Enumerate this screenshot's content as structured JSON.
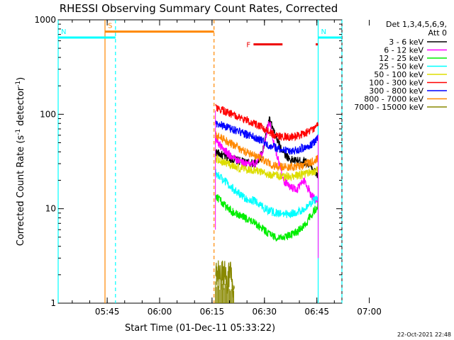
{
  "chart_data": {
    "type": "line",
    "title": "RHESSI Observing Summary Count Rates, Corrected",
    "xlabel": "Start Time (01-Dec-11 05:33:22)",
    "ylabel": "Corrected Count Rate (s",
    "ylabel_sup1": "-1",
    "ylabel_mid": " detector",
    "ylabel_sup2": "-1",
    "ylabel_end": ")",
    "x_start": "05:33:22",
    "x_range_min": [
      -2.4,
      78.8
    ],
    "x_ticks": [
      {
        "label": "05:45",
        "min": 11.63
      },
      {
        "label": "06:00",
        "min": 26.63
      },
      {
        "label": "06:15",
        "min": 41.63
      },
      {
        "label": "06:30",
        "min": 56.63
      },
      {
        "label": "06:45",
        "min": 71.63
      },
      {
        "label": "07:00",
        "min": 86.63
      }
    ],
    "y_scale": "log",
    "ylim": [
      1,
      1000
    ],
    "y_tick_labels": [
      {
        "label": "1",
        "value": 1
      },
      {
        "label": "10",
        "value": 10
      },
      {
        "label": "100",
        "value": 100
      },
      {
        "label": "1000",
        "value": 1000
      }
    ],
    "legend": {
      "placement": "right",
      "header1": "Det 1,3,4,5,6,9,",
      "header2": "Att 0"
    },
    "timestamp": "22-Oct-2021 22:48",
    "data_window_min": [
      42.6,
      72.0
    ],
    "series": [
      {
        "name": "3 - 6 keV",
        "color": "#000000",
        "x": [
          42.6,
          45,
          48,
          51,
          54,
          56,
          58,
          60,
          62,
          64,
          66,
          68,
          70,
          72
        ],
        "y": [
          40,
          36,
          33,
          31,
          30,
          38,
          90,
          55,
          40,
          33,
          32,
          32,
          28,
          22
        ]
      },
      {
        "name": "6 - 12 keV",
        "color": "#ff00ff",
        "x": [
          42.6,
          45,
          48,
          51,
          54,
          56,
          58,
          60,
          62,
          64,
          66,
          68,
          70,
          72
        ],
        "y": [
          55,
          42,
          34,
          30,
          30,
          40,
          85,
          40,
          20,
          17,
          16,
          20,
          14,
          12
        ]
      },
      {
        "name": "12 - 25 keV",
        "color": "#00ee00",
        "x": [
          42.6,
          45,
          48,
          51,
          54,
          56,
          58,
          60,
          62,
          64,
          66,
          68,
          70,
          72
        ],
        "y": [
          14,
          11,
          9,
          8,
          7,
          6.2,
          5.4,
          5,
          5,
          5.2,
          5.8,
          6.5,
          8.5,
          11
        ]
      },
      {
        "name": "25 - 50 keV",
        "color": "#00ffff",
        "x": [
          42.6,
          45,
          48,
          51,
          54,
          56,
          58,
          60,
          62,
          64,
          66,
          68,
          70,
          72
        ],
        "y": [
          24,
          20,
          16,
          13,
          12,
          10.5,
          9.5,
          9,
          8.8,
          8.8,
          9.2,
          10,
          11.5,
          13
        ]
      },
      {
        "name": "50 - 100 keV",
        "color": "#dddd00",
        "x": [
          42.6,
          45,
          48,
          51,
          54,
          56,
          58,
          60,
          62,
          64,
          66,
          68,
          70,
          72
        ],
        "y": [
          34,
          31,
          28,
          26,
          25,
          24,
          23,
          22.5,
          22,
          22,
          22.5,
          23,
          24,
          26
        ]
      },
      {
        "name": "100 - 300 keV",
        "color": "#ff0000",
        "x": [
          42.6,
          45,
          48,
          51,
          54,
          56,
          58,
          60,
          62,
          64,
          66,
          68,
          70,
          72
        ],
        "y": [
          115,
          108,
          98,
          88,
          80,
          72,
          64,
          60,
          58,
          58,
          59,
          62,
          68,
          75
        ]
      },
      {
        "name": "300 - 800 keV",
        "color": "#0000ff",
        "x": [
          42.6,
          45,
          48,
          51,
          54,
          56,
          58,
          60,
          62,
          64,
          66,
          68,
          70,
          72
        ],
        "y": [
          80,
          75,
          68,
          62,
          57,
          52,
          47,
          44,
          42,
          41,
          42,
          44,
          48,
          55
        ]
      },
      {
        "name": "800 - 7000 keV",
        "color": "#ff8800",
        "x": [
          42.6,
          45,
          48,
          51,
          54,
          56,
          58,
          60,
          62,
          64,
          66,
          68,
          70,
          72
        ],
        "y": [
          60,
          54,
          47,
          40,
          36,
          33,
          30,
          28,
          27.5,
          27.5,
          28,
          29,
          31,
          34
        ]
      },
      {
        "name": "7000 - 15000 keV",
        "color": "#888800",
        "x": [
          42.6,
          43,
          44,
          45,
          46,
          47,
          48
        ],
        "y": [
          2,
          2,
          1.9,
          2,
          1.8,
          1.9,
          1.5
        ]
      }
    ],
    "flags": [
      {
        "label": "S",
        "color": "#ff8800",
        "x_range_min": [
          11.0,
          42.2
        ],
        "value": 750
      },
      {
        "label": "N",
        "color": "#00ffff",
        "x_range_min": [
          -2.4,
          14.0
        ],
        "value": 650
      },
      {
        "label": "N",
        "color": "#00ffff",
        "x_range_min": [
          72.0,
          78.8
        ],
        "value": 650
      },
      {
        "label": "F",
        "color": "#ee0000",
        "x_range_min": [
          53.5,
          61.8
        ],
        "value": 550
      },
      {
        "label": "",
        "color": "#ee0000",
        "x_range_min": [
          71.3,
          71.9
        ],
        "value": 550
      }
    ],
    "markers": [
      {
        "color": "#00ffff",
        "style": "solid",
        "x_min": -2.4
      },
      {
        "color": "#ff8800",
        "style": "solid",
        "x_min": 11.0
      },
      {
        "color": "#00ffff",
        "style": "dashed",
        "x_min": 14.0
      },
      {
        "color": "#ff8800",
        "style": "dashed",
        "x_min": 42.2
      },
      {
        "color": "#00ffff",
        "style": "solid",
        "x_min": 72.0
      },
      {
        "color": "#00ffff",
        "style": "dashed",
        "x_min": 78.8
      }
    ]
  }
}
